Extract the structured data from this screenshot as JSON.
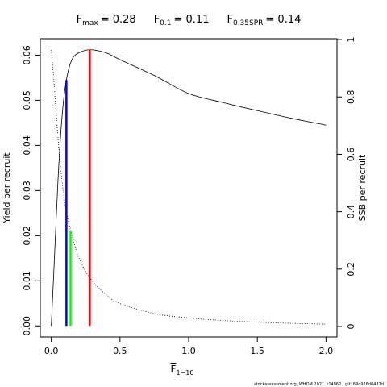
{
  "chart_data": {
    "type": "line",
    "reference_lines": [
      {
        "base": "F",
        "sub": "max",
        "label": "= 0.28",
        "x": 0.28,
        "top": 0.0612,
        "color": "#ff0000"
      },
      {
        "base": "F",
        "sub": "0.1",
        "label": "= 0.11",
        "x": 0.11,
        "top": 0.0545,
        "color": "#0000ff"
      },
      {
        "base": "F",
        "sub": "0.35SPR",
        "label": "= 0.14",
        "x": 0.14,
        "top": 0.021,
        "color": "#00ff00"
      }
    ],
    "xlabel": {
      "base": "F",
      "sub": "1−10"
    },
    "ylabel": "Yield per recruit",
    "y2label": "SSB per recruit",
    "footer": "stockassessment.org, WHOM 2021, r14862 , git: 69d926d0437d",
    "x": [
      0,
      0.02,
      0.05,
      0.08,
      0.11,
      0.15,
      0.2,
      0.28,
      0.4,
      0.5,
      0.75,
      1.0,
      1.25,
      1.5,
      1.75,
      2.0
    ],
    "series": [
      {
        "color": "#000000",
        "dash": false,
        "values": [
          0,
          0.013,
          0.033,
          0.047,
          0.0545,
          0.059,
          0.0605,
          0.0612,
          0.0605,
          0.059,
          0.0555,
          0.0515,
          0.0495,
          0.0477,
          0.046,
          0.0445
        ]
      },
      {
        "color": "#000000",
        "dash": true,
        "axis": "y2",
        "values": [
          0.963,
          0.85,
          0.65,
          0.5,
          0.4,
          0.32,
          0.24,
          0.17,
          0.11,
          0.08,
          0.045,
          0.03,
          0.021,
          0.015,
          0.011,
          0.008
        ]
      }
    ],
    "xlim": [
      -0.08,
      2.08
    ],
    "ylim": [
      -0.00245,
      0.06365
    ],
    "y2lim": [
      -0.0365,
      1.003
    ],
    "xticks": [
      {
        "value": 0,
        "label": "0.0"
      },
      0.5,
      {
        "value": 1,
        "label": "1.0"
      },
      1.5,
      {
        "value": 2,
        "label": "2.0"
      }
    ],
    "yticks": [
      {
        "value": 0,
        "label": "0.00"
      },
      0.01,
      0.02,
      0.03,
      0.04,
      0.05,
      0.06
    ],
    "y2ticks": [
      0,
      0.2,
      0.4,
      0.6,
      0.8,
      1
    ]
  }
}
